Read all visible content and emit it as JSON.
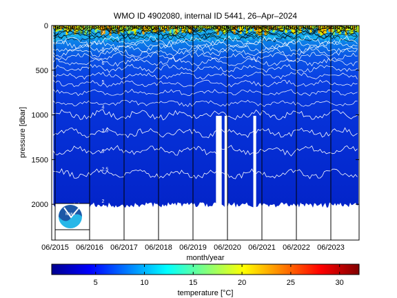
{
  "chart_data": {
    "type": "heatmap",
    "title": "WMO ID 4902080, internal ID 5441, 26–Apr–2024",
    "xlabel": "month/year",
    "ylabel": "pressure [dbar]",
    "x_ticks": [
      "06/2015",
      "06/2016",
      "06/2017",
      "06/2018",
      "06/2019",
      "06/2020",
      "06/2021",
      "06/2022",
      "06/2023"
    ],
    "y_ticks": [
      0,
      500,
      1000,
      1500,
      2000
    ],
    "ylim": [
      2400,
      0
    ],
    "y_reversed": true,
    "colorbar": {
      "label": "temperature [°C]",
      "range": [
        0.5,
        32
      ],
      "ticks": [
        5,
        10,
        15,
        20,
        25,
        30
      ],
      "colormap": "jet"
    },
    "isotherm_labels": [
      {
        "pressure": 75,
        "label": "2"
      },
      {
        "pressure": 260,
        "label": "8"
      },
      {
        "pressure": 415,
        "label": "6"
      },
      {
        "pressure": 625,
        "label": "5"
      },
      {
        "pressure": 905,
        "label": "4"
      },
      {
        "pressure": 1170,
        "label": "3.5"
      },
      {
        "pressure": 1400,
        "label": "3"
      },
      {
        "pressure": 1600,
        "label": "2.5"
      },
      {
        "pressure": 1960,
        "label": "2"
      }
    ],
    "isotherm_depths": [
      1000,
      1200,
      1400,
      1660
    ],
    "profile_max_depth": 2000,
    "data_gaps": [
      {
        "x0": "2020-02",
        "x1": "2020-04"
      },
      {
        "x0": "2020-05",
        "x1": "2020-06"
      },
      {
        "x0": "2021-03",
        "x1": "2021-04"
      }
    ]
  },
  "logo": {
    "text": "NOAA",
    "colors": [
      "#1d58a7",
      "#27b7e8",
      "#ffffff"
    ]
  }
}
